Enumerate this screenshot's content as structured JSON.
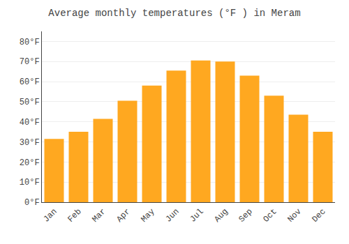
{
  "chart_data": {
    "type": "bar",
    "title": "Average monthly temperatures (°F ) in Meram",
    "categories": [
      "Jan",
      "Feb",
      "Mar",
      "Apr",
      "May",
      "Jun",
      "Jul",
      "Aug",
      "Sep",
      "Oct",
      "Nov",
      "Dec"
    ],
    "values": [
      31.5,
      35.0,
      41.5,
      50.5,
      58.0,
      65.5,
      70.5,
      70.0,
      63.0,
      53.0,
      43.5,
      35.0
    ],
    "color": "#FFA820",
    "ylim": [
      0,
      85
    ],
    "yticks": [
      {
        "value": 0,
        "label": "0°F"
      },
      {
        "value": 10,
        "label": "10°F"
      },
      {
        "value": 20,
        "label": "20°F"
      },
      {
        "value": 30,
        "label": "30°F"
      },
      {
        "value": 40,
        "label": "40°F"
      },
      {
        "value": 50,
        "label": "50°F"
      },
      {
        "value": 60,
        "label": "60°F"
      },
      {
        "value": 70,
        "label": "70°F"
      },
      {
        "value": 80,
        "label": "80°F"
      }
    ],
    "grid": true
  }
}
